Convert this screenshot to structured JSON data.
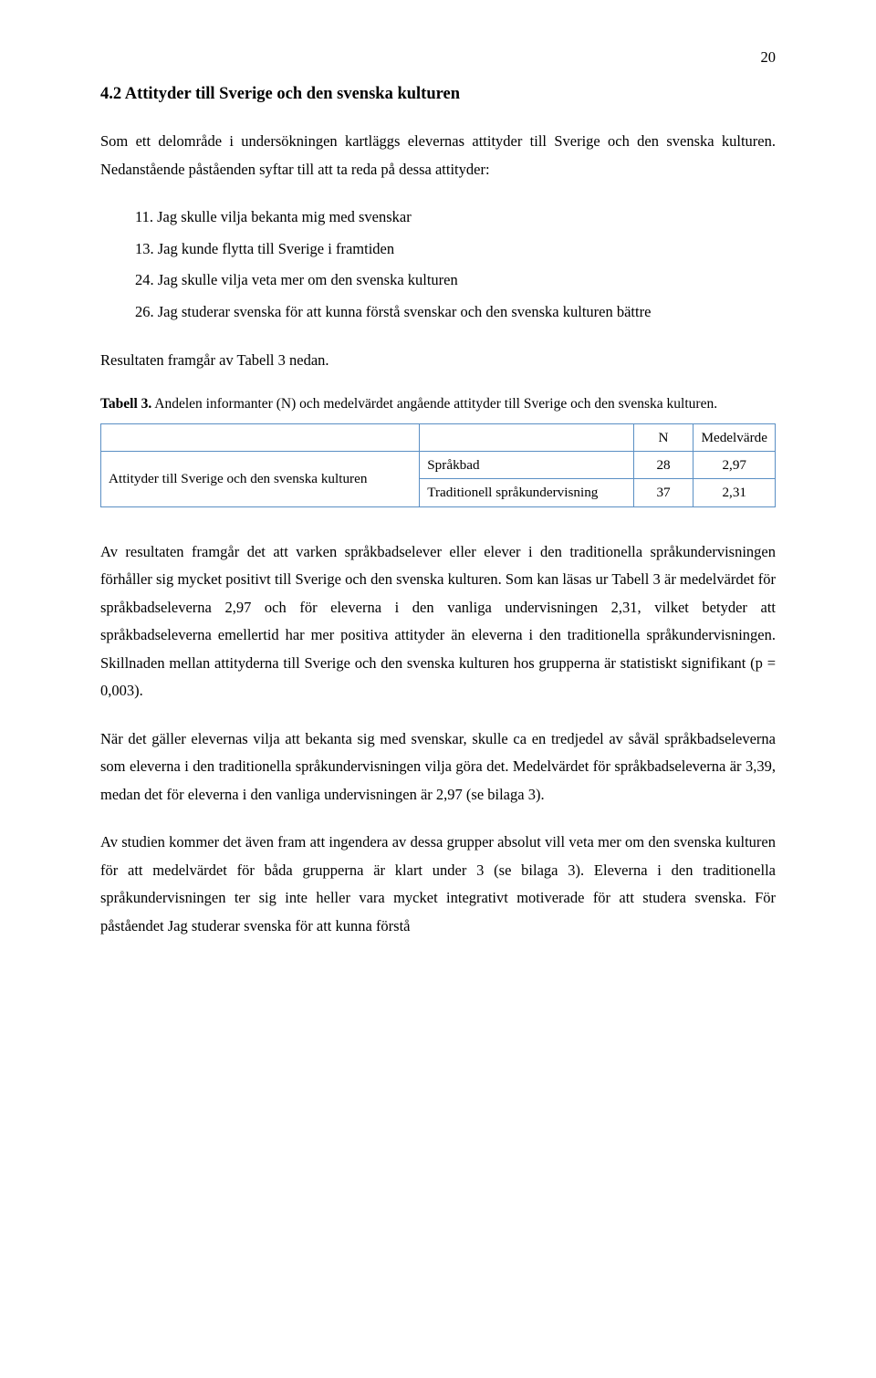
{
  "page": {
    "number": "20"
  },
  "heading": "4.2 Attityder till Sverige och den svenska kulturen",
  "intro": "Som ett delområde i undersökningen kartläggs elevernas attityder till Sverige och den svenska kulturen. Nedanstående påståenden syftar till att ta reda på dessa attityder:",
  "list": {
    "i1": "11. Jag skulle vilja bekanta mig med svenskar",
    "i2": "13. Jag kunde flytta till Sverige i framtiden",
    "i3": "24. Jag skulle vilja veta mer om den svenska kulturen",
    "i4": "26. Jag studerar svenska för att kunna förstå svenskar och den svenska kulturen bättre"
  },
  "after_list": "Resultaten framgår av Tabell 3 nedan.",
  "table": {
    "caption_label": "Tabell 3.",
    "caption_rest": " Andelen informanter (N) och medelvärdet angående attityder till Sverige och den svenska kulturen.",
    "header_n": "N",
    "header_mean": "Medelvärde",
    "category": "Attityder till Sverige och den svenska kulturen",
    "row1_method": "Språkbad",
    "row1_n": "28",
    "row1_mean": "2,97",
    "row2_method": "Traditionell språkundervisning",
    "row2_n": "37",
    "row2_mean": "2,31",
    "border_color": "#5a8fc4"
  },
  "para1": "Av resultaten framgår det att varken språkbadselever eller elever i den traditionella språkundervisningen förhåller sig mycket positivt till Sverige och den svenska kulturen. Som kan läsas ur Tabell 3 är medelvärdet för språkbadseleverna 2,97 och för eleverna i den vanliga undervisningen 2,31, vilket betyder att språkbadseleverna emellertid har mer positiva attityder än eleverna i den traditionella språkundervisningen. Skillnaden mellan attityderna till Sverige och den svenska kulturen hos grupperna är statistiskt signifikant (p = 0,003).",
  "para2": "När det gäller elevernas vilja att bekanta sig med svenskar, skulle ca en tredjedel av såväl språkbadseleverna som eleverna i den traditionella språkundervisningen vilja göra det. Medelvärdet för språkbadseleverna är 3,39, medan det för eleverna i den vanliga undervisningen är 2,97 (se bilaga 3).",
  "para3": "Av studien kommer det även fram att ingendera av dessa grupper absolut vill veta mer om den svenska kulturen för att medelvärdet för båda grupperna är klart under 3 (se bilaga 3). Eleverna i den traditionella språkundervisningen ter sig inte heller vara mycket integrativt motiverade för att studera svenska. För påståendet Jag studerar svenska för att kunna förstå"
}
